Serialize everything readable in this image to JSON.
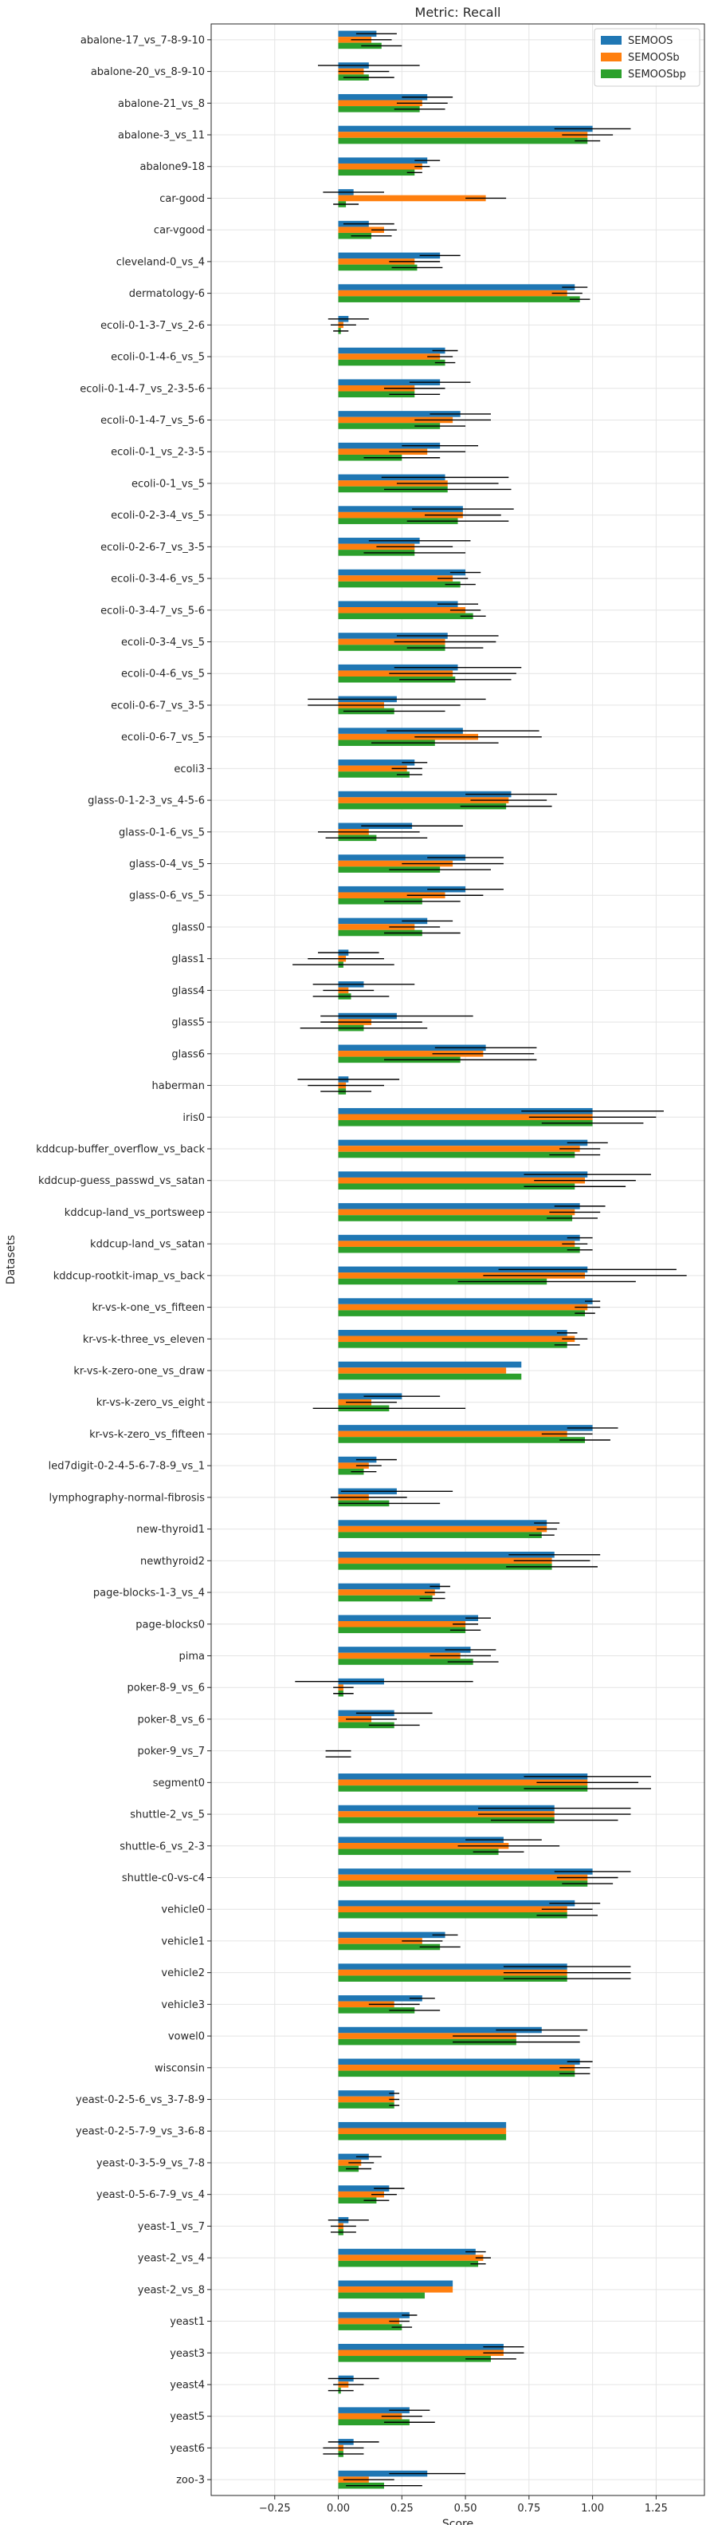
{
  "chart_data": {
    "type": "bar",
    "orientation": "horizontal",
    "title": "Metric: Recall",
    "xlabel": "Score",
    "ylabel": "Datasets",
    "xlim": [
      -0.5,
      1.44
    ],
    "xticks": [
      -0.25,
      0.0,
      0.25,
      0.5,
      0.75,
      1.0,
      1.25
    ],
    "xtick_labels": [
      "−0.25",
      "0.00",
      "0.25",
      "0.50",
      "0.75",
      "1.00",
      "1.25"
    ],
    "grid": true,
    "legend_position": "top-right",
    "categories": [
      "abalone-17_vs_7-8-9-10",
      "abalone-20_vs_8-9-10",
      "abalone-21_vs_8",
      "abalone-3_vs_11",
      "abalone9-18",
      "car-good",
      "car-vgood",
      "cleveland-0_vs_4",
      "dermatology-6",
      "ecoli-0-1-3-7_vs_2-6",
      "ecoli-0-1-4-6_vs_5",
      "ecoli-0-1-4-7_vs_2-3-5-6",
      "ecoli-0-1-4-7_vs_5-6",
      "ecoli-0-1_vs_2-3-5",
      "ecoli-0-1_vs_5",
      "ecoli-0-2-3-4_vs_5",
      "ecoli-0-2-6-7_vs_3-5",
      "ecoli-0-3-4-6_vs_5",
      "ecoli-0-3-4-7_vs_5-6",
      "ecoli-0-3-4_vs_5",
      "ecoli-0-4-6_vs_5",
      "ecoli-0-6-7_vs_3-5",
      "ecoli-0-6-7_vs_5",
      "ecoli3",
      "glass-0-1-2-3_vs_4-5-6",
      "glass-0-1-6_vs_5",
      "glass-0-4_vs_5",
      "glass-0-6_vs_5",
      "glass0",
      "glass1",
      "glass4",
      "glass5",
      "glass6",
      "haberman",
      "iris0",
      "kddcup-buffer_overflow_vs_back",
      "kddcup-guess_passwd_vs_satan",
      "kddcup-land_vs_portsweep",
      "kddcup-land_vs_satan",
      "kddcup-rootkit-imap_vs_back",
      "kr-vs-k-one_vs_fifteen",
      "kr-vs-k-three_vs_eleven",
      "kr-vs-k-zero-one_vs_draw",
      "kr-vs-k-zero_vs_eight",
      "kr-vs-k-zero_vs_fifteen",
      "led7digit-0-2-4-5-6-7-8-9_vs_1",
      "lymphography-normal-fibrosis",
      "new-thyroid1",
      "newthyroid2",
      "page-blocks-1-3_vs_4",
      "page-blocks0",
      "pima",
      "poker-8-9_vs_6",
      "poker-8_vs_6",
      "poker-9_vs_7",
      "segment0",
      "shuttle-2_vs_5",
      "shuttle-6_vs_2-3",
      "shuttle-c0-vs-c4",
      "vehicle0",
      "vehicle1",
      "vehicle2",
      "vehicle3",
      "vowel0",
      "wisconsin",
      "yeast-0-2-5-6_vs_3-7-8-9",
      "yeast-0-2-5-7-9_vs_3-6-8",
      "yeast-0-3-5-9_vs_7-8",
      "yeast-0-5-6-7-9_vs_4",
      "yeast-1_vs_7",
      "yeast-2_vs_4",
      "yeast-2_vs_8",
      "yeast1",
      "yeast3",
      "yeast4",
      "yeast5",
      "yeast6",
      "zoo-3"
    ],
    "series": [
      {
        "name": "SEMOOS",
        "color": "#1f77b4",
        "values": [
          0.15,
          0.12,
          0.35,
          1.0,
          0.35,
          0.06,
          0.12,
          0.4,
          0.93,
          0.04,
          0.42,
          0.4,
          0.48,
          0.4,
          0.42,
          0.49,
          0.32,
          0.5,
          0.47,
          0.43,
          0.47,
          0.23,
          0.49,
          0.3,
          0.68,
          0.29,
          0.5,
          0.5,
          0.35,
          0.04,
          0.1,
          0.23,
          0.58,
          0.04,
          1.0,
          0.98,
          0.98,
          0.95,
          0.95,
          0.98,
          1.0,
          0.9,
          0.72,
          0.25,
          1.0,
          0.15,
          0.23,
          0.82,
          0.85,
          0.4,
          0.55,
          0.52,
          0.18,
          0.22,
          0.0,
          0.98,
          0.85,
          0.65,
          1.0,
          0.93,
          0.42,
          0.9,
          0.33,
          0.8,
          0.95,
          0.22,
          0.66,
          0.12,
          0.2,
          0.04,
          0.54,
          0.45,
          0.28,
          0.65,
          0.06,
          0.28,
          0.06,
          0.35
        ],
        "errors": [
          0.08,
          0.2,
          0.1,
          0.15,
          0.05,
          0.12,
          0.1,
          0.08,
          0.05,
          0.08,
          0.05,
          0.12,
          0.12,
          0.15,
          0.25,
          0.2,
          0.2,
          0.06,
          0.08,
          0.2,
          0.25,
          0.35,
          0.3,
          0.05,
          0.18,
          0.2,
          0.15,
          0.15,
          0.1,
          0.12,
          0.2,
          0.3,
          0.2,
          0.2,
          0.28,
          0.08,
          0.25,
          0.1,
          0.05,
          0.35,
          0.03,
          0.04,
          0.0,
          0.15,
          0.1,
          0.08,
          0.22,
          0.05,
          0.18,
          0.04,
          0.05,
          0.1,
          0.35,
          0.15,
          0.0,
          0.25,
          0.3,
          0.15,
          0.15,
          0.1,
          0.05,
          0.25,
          0.05,
          0.18,
          0.05,
          0.02,
          0.0,
          0.05,
          0.06,
          0.08,
          0.04,
          0.0,
          0.03,
          0.08,
          0.1,
          0.08,
          0.1,
          0.15
        ]
      },
      {
        "name": "SEMOOSb",
        "color": "#ff7f0e",
        "values": [
          0.13,
          0.1,
          0.33,
          0.98,
          0.33,
          0.58,
          0.18,
          0.3,
          0.9,
          0.02,
          0.4,
          0.3,
          0.45,
          0.35,
          0.43,
          0.49,
          0.3,
          0.45,
          0.5,
          0.42,
          0.45,
          0.18,
          0.55,
          0.27,
          0.67,
          0.12,
          0.45,
          0.42,
          0.3,
          0.03,
          0.04,
          0.13,
          0.57,
          0.03,
          1.0,
          0.95,
          0.97,
          0.93,
          0.93,
          0.97,
          0.98,
          0.93,
          0.66,
          0.13,
          0.9,
          0.12,
          0.12,
          0.82,
          0.84,
          0.38,
          0.5,
          0.48,
          0.02,
          0.13,
          0.0,
          0.98,
          0.85,
          0.67,
          0.98,
          0.9,
          0.33,
          0.9,
          0.22,
          0.7,
          0.93,
          0.22,
          0.66,
          0.09,
          0.18,
          0.02,
          0.57,
          0.45,
          0.24,
          0.65,
          0.04,
          0.25,
          0.02,
          0.12
        ],
        "errors": [
          0.08,
          0.1,
          0.1,
          0.1,
          0.03,
          0.08,
          0.05,
          0.1,
          0.06,
          0.05,
          0.05,
          0.12,
          0.15,
          0.15,
          0.2,
          0.15,
          0.15,
          0.06,
          0.06,
          0.2,
          0.25,
          0.3,
          0.25,
          0.06,
          0.15,
          0.2,
          0.2,
          0.15,
          0.1,
          0.15,
          0.1,
          0.2,
          0.2,
          0.15,
          0.25,
          0.08,
          0.2,
          0.1,
          0.05,
          0.4,
          0.05,
          0.05,
          0.0,
          0.1,
          0.1,
          0.05,
          0.15,
          0.04,
          0.15,
          0.04,
          0.05,
          0.12,
          0.04,
          0.1,
          0.05,
          0.2,
          0.3,
          0.2,
          0.12,
          0.1,
          0.08,
          0.25,
          0.1,
          0.25,
          0.06,
          0.02,
          0.0,
          0.05,
          0.05,
          0.05,
          0.03,
          0.0,
          0.04,
          0.08,
          0.06,
          0.08,
          0.08,
          0.1
        ]
      },
      {
        "name": "SEMOOSbp",
        "color": "#2ca02c",
        "values": [
          0.17,
          0.12,
          0.32,
          0.98,
          0.3,
          0.03,
          0.13,
          0.31,
          0.95,
          0.01,
          0.42,
          0.3,
          0.4,
          0.25,
          0.43,
          0.47,
          0.3,
          0.48,
          0.53,
          0.42,
          0.46,
          0.22,
          0.38,
          0.28,
          0.66,
          0.15,
          0.4,
          0.33,
          0.33,
          0.02,
          0.05,
          0.1,
          0.48,
          0.03,
          1.0,
          0.93,
          0.93,
          0.92,
          0.95,
          0.82,
          0.97,
          0.9,
          0.72,
          0.2,
          0.97,
          0.1,
          0.2,
          0.8,
          0.84,
          0.37,
          0.5,
          0.53,
          0.02,
          0.22,
          0.0,
          0.98,
          0.85,
          0.63,
          0.98,
          0.9,
          0.4,
          0.9,
          0.3,
          0.7,
          0.93,
          0.22,
          0.66,
          0.08,
          0.15,
          0.02,
          0.55,
          0.34,
          0.25,
          0.6,
          0.01,
          0.28,
          0.02,
          0.18
        ],
        "errors": [
          0.08,
          0.1,
          0.1,
          0.05,
          0.03,
          0.05,
          0.08,
          0.1,
          0.04,
          0.03,
          0.04,
          0.1,
          0.1,
          0.15,
          0.25,
          0.2,
          0.2,
          0.06,
          0.05,
          0.15,
          0.22,
          0.2,
          0.25,
          0.05,
          0.18,
          0.2,
          0.2,
          0.15,
          0.15,
          0.2,
          0.15,
          0.25,
          0.3,
          0.1,
          0.2,
          0.1,
          0.2,
          0.1,
          0.05,
          0.35,
          0.04,
          0.05,
          0.0,
          0.3,
          0.1,
          0.05,
          0.2,
          0.05,
          0.18,
          0.05,
          0.06,
          0.1,
          0.04,
          0.1,
          0.05,
          0.25,
          0.25,
          0.1,
          0.1,
          0.12,
          0.08,
          0.25,
          0.1,
          0.25,
          0.06,
          0.02,
          0.0,
          0.05,
          0.05,
          0.05,
          0.03,
          0.0,
          0.04,
          0.1,
          0.05,
          0.1,
          0.08,
          0.15
        ]
      }
    ]
  }
}
